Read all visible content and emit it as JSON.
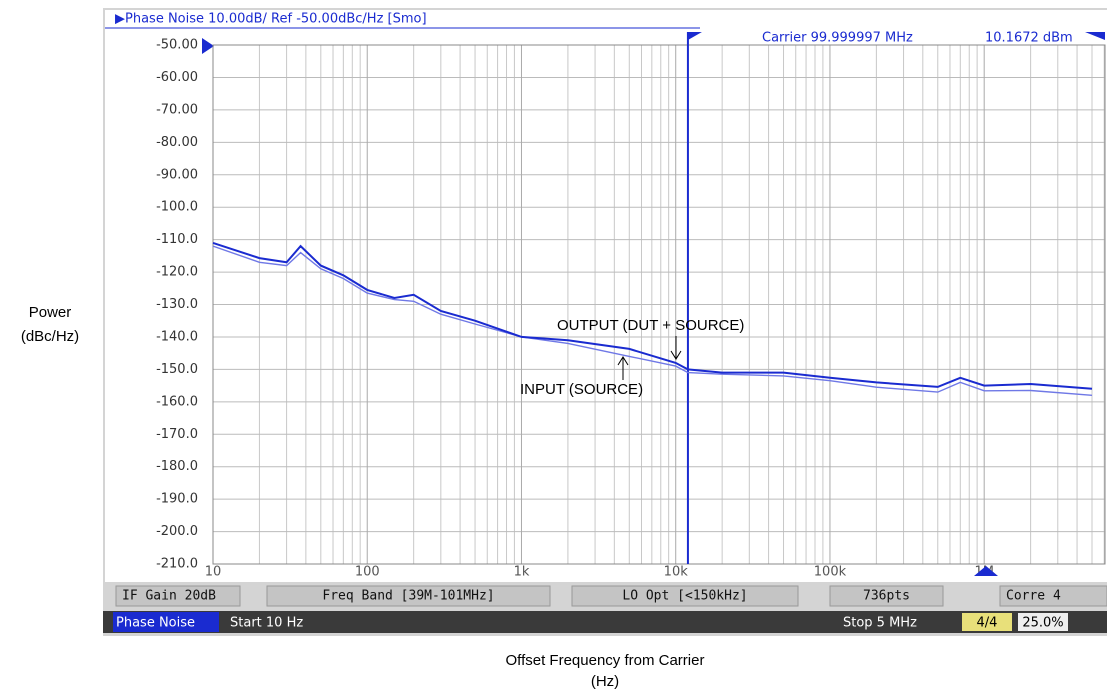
{
  "header": {
    "title": "▶Phase Noise 10.00dB/ Ref -50.00dBc/Hz [Smo]",
    "carrier": "Carrier 99.999997 MHz",
    "level": "10.1672 dBm"
  },
  "settings_bar": [
    "IF Gain 20dB",
    "Freq Band [39M-101MHz]",
    "LO Opt [<150kHz]",
    "736pts",
    "Corre 4"
  ],
  "status_bar": {
    "mode": "Phase Noise",
    "start": "Start 10 Hz",
    "stop": "Stop 5 MHz",
    "trace": "4/4",
    "percent": "25.0%"
  },
  "chart_data": {
    "type": "line",
    "xlog": true,
    "grid": true,
    "ylabel": [
      "Power",
      "(dBc/Hz)"
    ],
    "xlabel": [
      "Offset Frequency from Carrier",
      "(Hz)"
    ],
    "annotations": [
      "OUTPUT (DUT + SOURCE)",
      "INPUT (SOURCE)"
    ],
    "marker_x": 12000,
    "xlim": [
      10,
      5000000
    ],
    "ylim": [
      -210,
      -50
    ],
    "xticks": [
      10,
      100,
      {
        "value": 1000,
        "label": "1k"
      },
      {
        "value": 10000,
        "label": "10k"
      },
      {
        "value": 100000,
        "label": "100k"
      },
      {
        "value": 1000000,
        "label": "1M"
      }
    ],
    "yticks": [
      {
        "value": -50,
        "label": "-50.00"
      },
      {
        "value": -60,
        "label": "-60.00"
      },
      {
        "value": -70,
        "label": "-70.00"
      },
      {
        "value": -80,
        "label": "-80.00"
      },
      {
        "value": -90,
        "label": "-90.00"
      },
      {
        "value": -100,
        "label": "-100.0"
      },
      {
        "value": -110,
        "label": "-110.0"
      },
      {
        "value": -120,
        "label": "-120.0"
      },
      {
        "value": -130,
        "label": "-130.0"
      },
      {
        "value": -140,
        "label": "-140.0"
      },
      {
        "value": -150,
        "label": "-150.0"
      },
      {
        "value": -160,
        "label": "-160.0"
      },
      {
        "value": -170,
        "label": "-170.0"
      },
      {
        "value": -180,
        "label": "-180.0"
      },
      {
        "value": -190,
        "label": "-190.0"
      },
      {
        "value": -200,
        "label": "-200.0"
      },
      {
        "value": -210,
        "label": "-210.0"
      }
    ],
    "x": [
      10,
      20,
      30,
      37,
      50,
      70,
      100,
      150,
      200,
      300,
      500,
      1000,
      2000,
      5000,
      10000,
      12000,
      20000,
      50000,
      100000,
      200000,
      500000,
      700000,
      1000000,
      2000000,
      5000000
    ],
    "series": [
      {
        "color": "#1a2bd0",
        "values": [
          -111,
          -115.7,
          -117,
          -112,
          -118,
          -121,
          -125.5,
          -128,
          -127,
          -132,
          -135,
          -140,
          -141,
          -143.7,
          -148,
          -150,
          -151,
          -151,
          -152.6,
          -154,
          -155.4,
          -152.6,
          -155,
          -154.5,
          -156
        ]
      },
      {
        "color": "#6f78e6",
        "values": [
          -112,
          -117,
          -118,
          -114,
          -119,
          -122,
          -126.5,
          -128.5,
          -129,
          -133,
          -136,
          -140,
          -142,
          -146,
          -149,
          -151,
          -151.5,
          -152,
          -153.5,
          -155.5,
          -157,
          -154,
          -156.6,
          -156.5,
          -158
        ]
      }
    ]
  }
}
